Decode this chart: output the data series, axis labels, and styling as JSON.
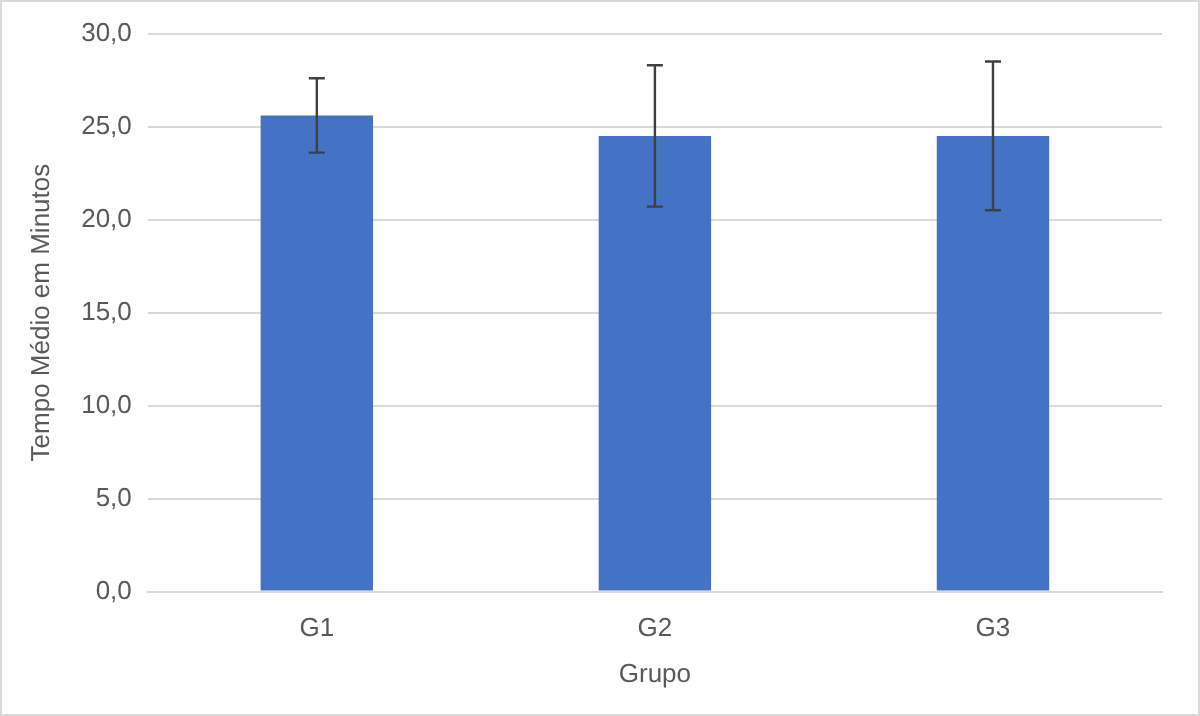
{
  "chart_data": {
    "type": "bar",
    "xlabel": "Grupo",
    "ylabel": "Tempo Médio em Minutos",
    "categories": [
      "G1",
      "G2",
      "G3"
    ],
    "values": [
      25.6,
      24.5,
      24.5
    ],
    "errors": [
      2.0,
      3.8,
      4.0
    ],
    "color": "#4472c4",
    "ylim": [
      0,
      30
    ],
    "yticks": [
      {
        "value": 0,
        "label": "0,0"
      },
      {
        "value": 5,
        "label": "5,0"
      },
      {
        "value": 10,
        "label": "10,0"
      },
      {
        "value": 15,
        "label": "15,0"
      },
      {
        "value": 20,
        "label": "20,0"
      },
      {
        "value": 25,
        "label": "25,0"
      },
      {
        "value": 30,
        "label": "30,0"
      }
    ],
    "grid": "y",
    "legend": false
  }
}
